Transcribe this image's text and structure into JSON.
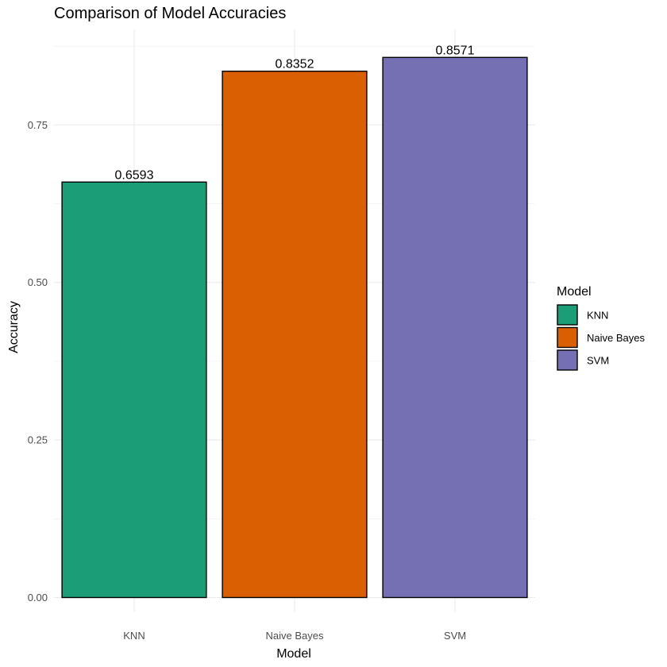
{
  "chart_data": {
    "type": "bar",
    "title": "Comparison of Model Accuracies",
    "xlabel": "Model",
    "ylabel": "Accuracy",
    "categories": [
      "KNN",
      "Naive Bayes",
      "SVM"
    ],
    "values": [
      0.6593,
      0.8352,
      0.8571
    ],
    "data_labels": [
      "0.6593",
      "0.8352",
      "0.8571"
    ],
    "colors": [
      "#1b9e77",
      "#d95f02",
      "#7570b3"
    ],
    "ylim": [
      0,
      0.9
    ],
    "y_ticks": [
      0,
      0.25,
      0.5,
      0.75
    ],
    "y_tick_labels": [
      "0.00",
      "0.25",
      "0.50",
      "0.75"
    ],
    "y_minor_ticks": [
      0.125,
      0.375,
      0.625,
      0.875
    ],
    "grid": true,
    "legend": {
      "title": "Model",
      "position": "right",
      "items": [
        "KNN",
        "Naive Bayes",
        "SVM"
      ]
    }
  }
}
